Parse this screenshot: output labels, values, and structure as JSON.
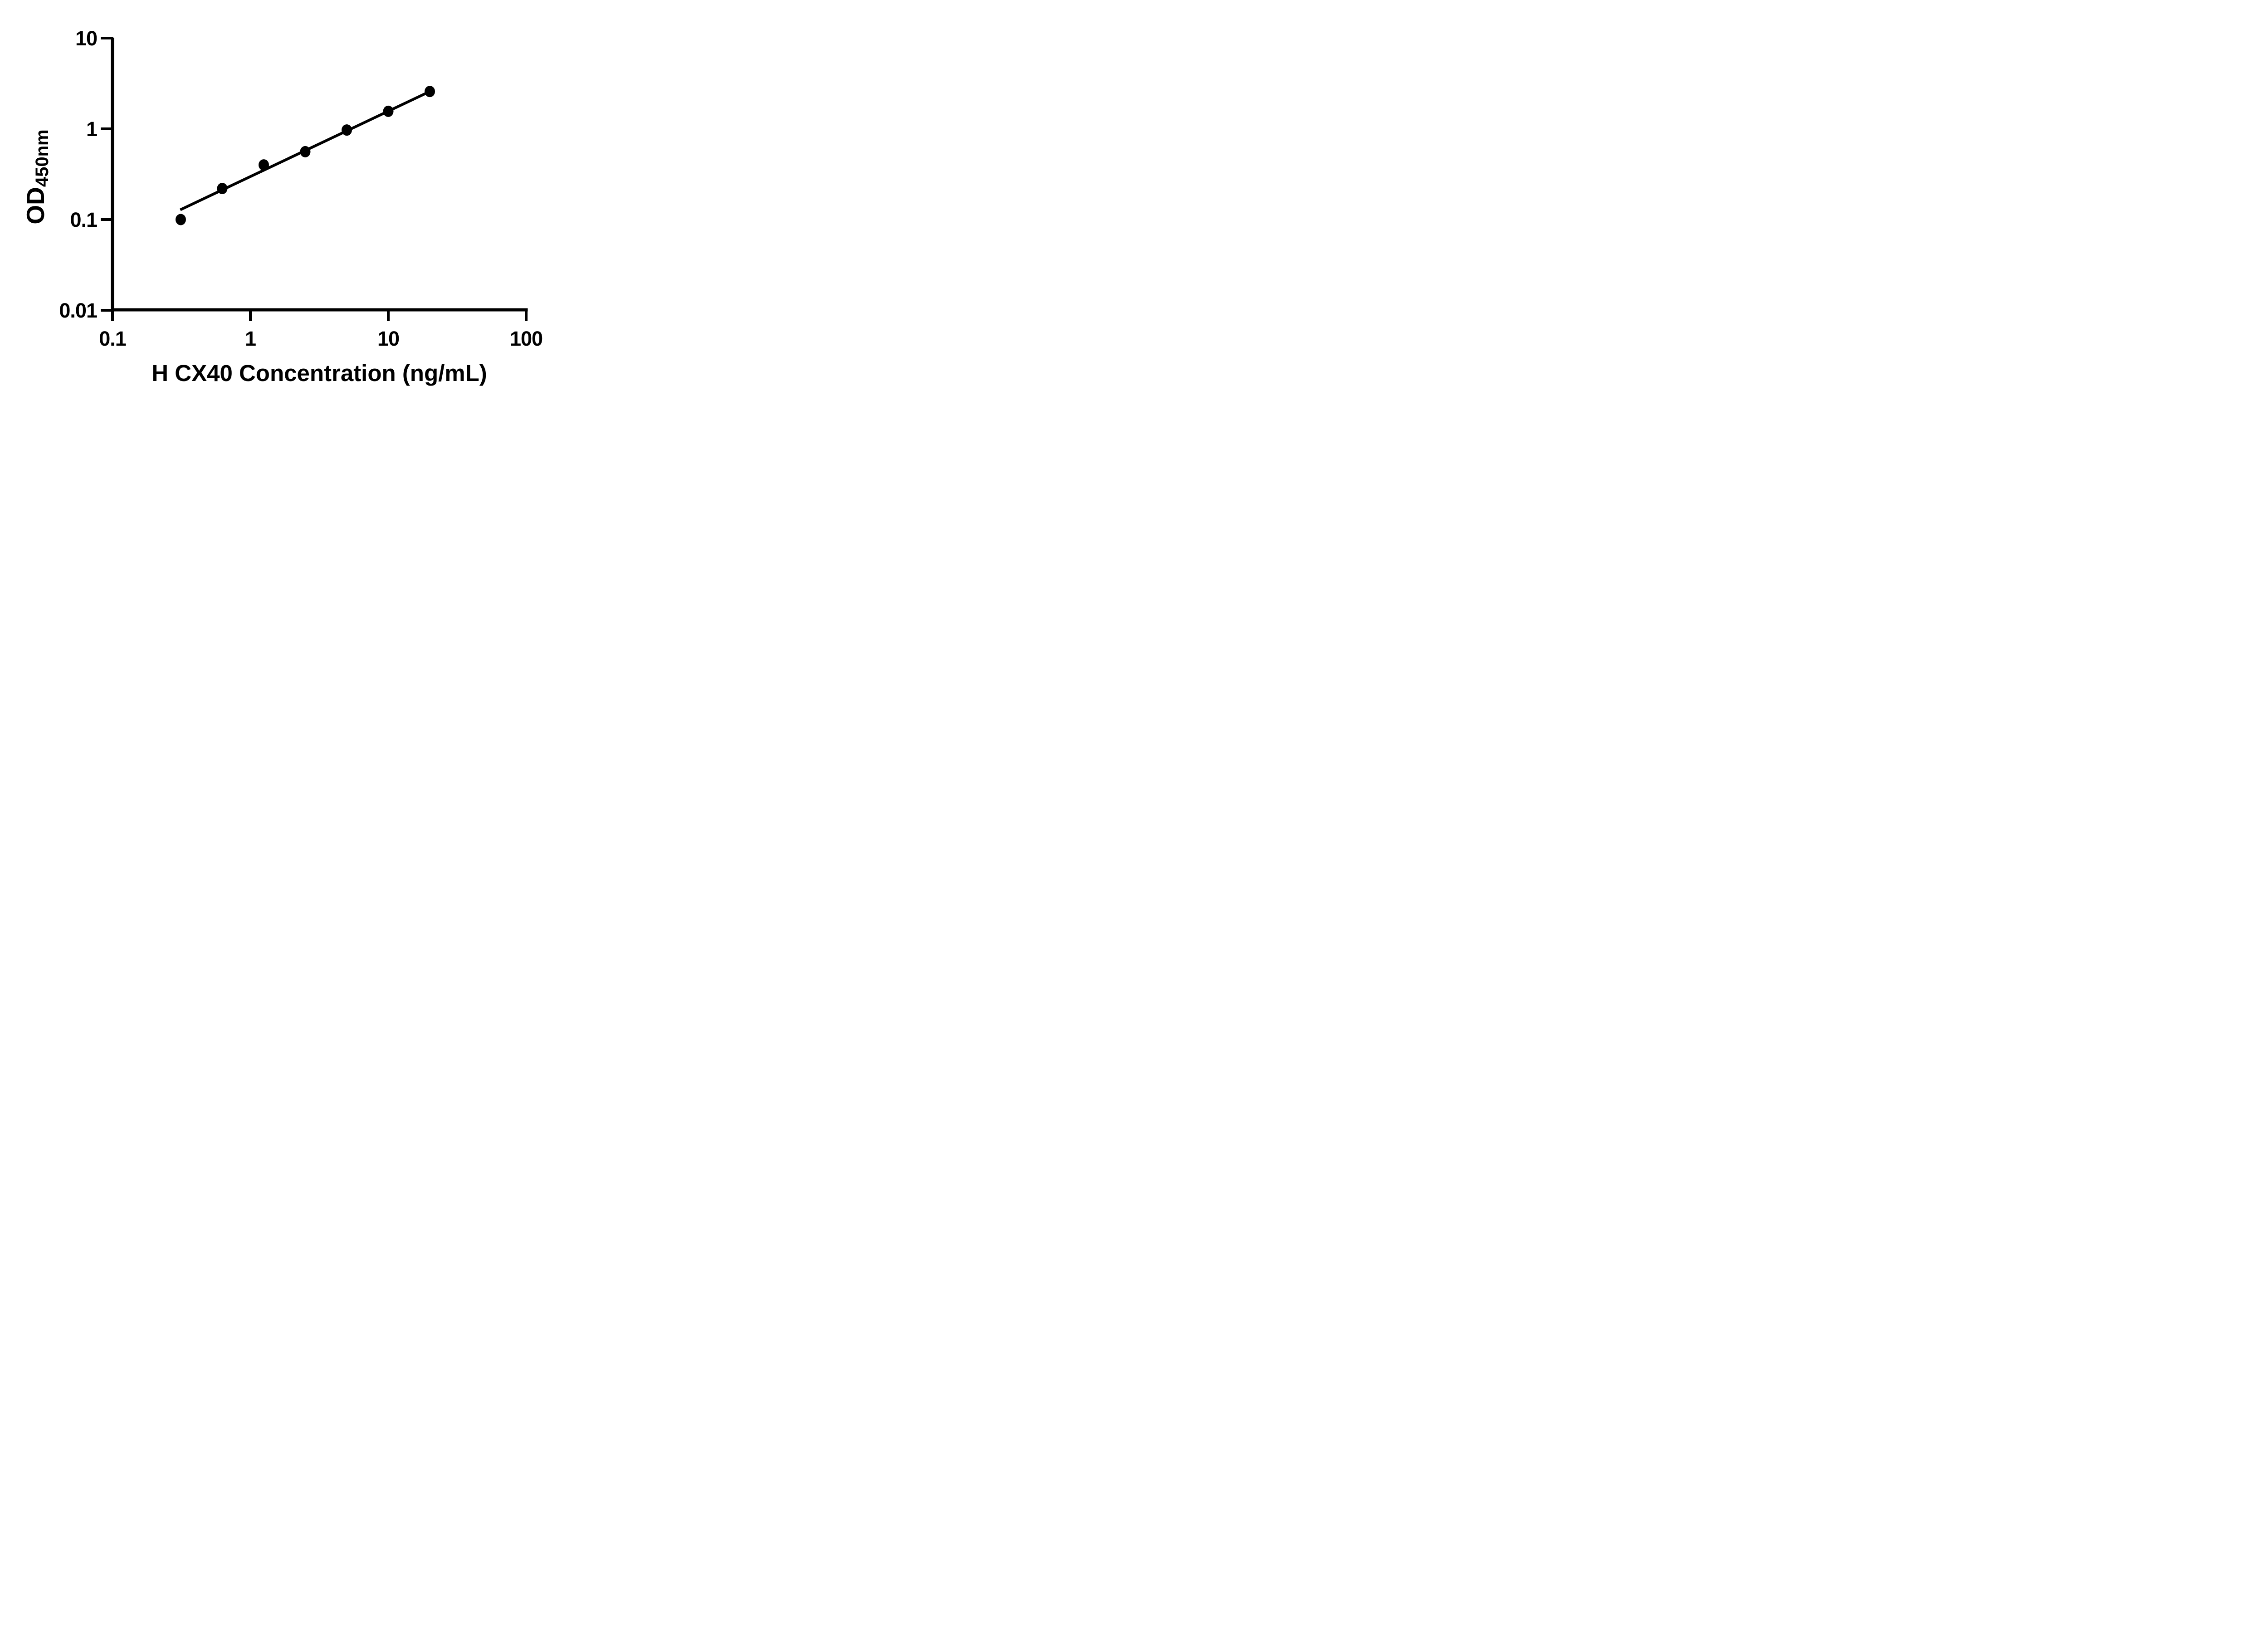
{
  "figure": {
    "background": "#ffffff",
    "ink": "#000000"
  },
  "chart_data": {
    "type": "scatter",
    "scale": "log-log",
    "title": "",
    "xlabel": "H CX40 Concentration (ng/mL)",
    "ylabel_base": "OD",
    "ylabel_sub": "450nm",
    "x": [
      0.3125,
      0.625,
      1.25,
      2.5,
      5,
      10,
      20
    ],
    "y": [
      0.1,
      0.22,
      0.4,
      0.56,
      0.97,
      1.56,
      2.58
    ],
    "fit_line": {
      "x1": 0.31,
      "y1": 0.128,
      "x2": 20,
      "y2": 2.58
    },
    "xlim": [
      0.1,
      100
    ],
    "ylim": [
      0.01,
      10
    ],
    "x_ticks": [
      {
        "value": 0.1,
        "label": "0.1"
      },
      {
        "value": 1,
        "label": "1"
      },
      {
        "value": 10,
        "label": "10"
      },
      {
        "value": 100,
        "label": "100"
      }
    ],
    "y_ticks": [
      {
        "value": 0.01,
        "label": "0.01"
      },
      {
        "value": 0.1,
        "label": "0.1"
      },
      {
        "value": 1,
        "label": "1"
      },
      {
        "value": 10,
        "label": "10"
      }
    ],
    "grid": false,
    "legend": "none",
    "marker_color": "#000000",
    "line_color": "#000000",
    "axis_color": "#000000"
  }
}
